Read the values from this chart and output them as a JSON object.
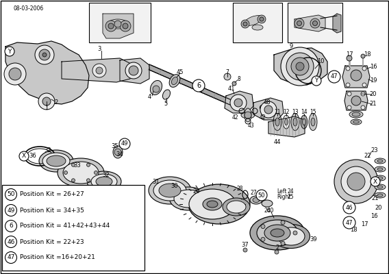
{
  "date_code": "08-03-2006",
  "bg_color": "#ffffff",
  "lc": "#000000",
  "gray1": "#c8c8c8",
  "gray2": "#a8a8a8",
  "gray3": "#e8e8e8",
  "gray4": "#b0b0b0",
  "gray5": "#d8d8d8",
  "legend_items": [
    {
      "num": "50",
      "text": "Position Kit = 26+27"
    },
    {
      "num": "49",
      "text": "Position Kit = 34+35"
    },
    {
      "num": "6",
      "text": "Position Kit = 41+42+43+44"
    },
    {
      "num": "46",
      "text": "Position Kit = 22+23"
    },
    {
      "num": "47",
      "text": "Position Kit =16+20+21"
    }
  ],
  "fig_width": 5.68,
  "fig_height": 4.0,
  "dpi": 100
}
